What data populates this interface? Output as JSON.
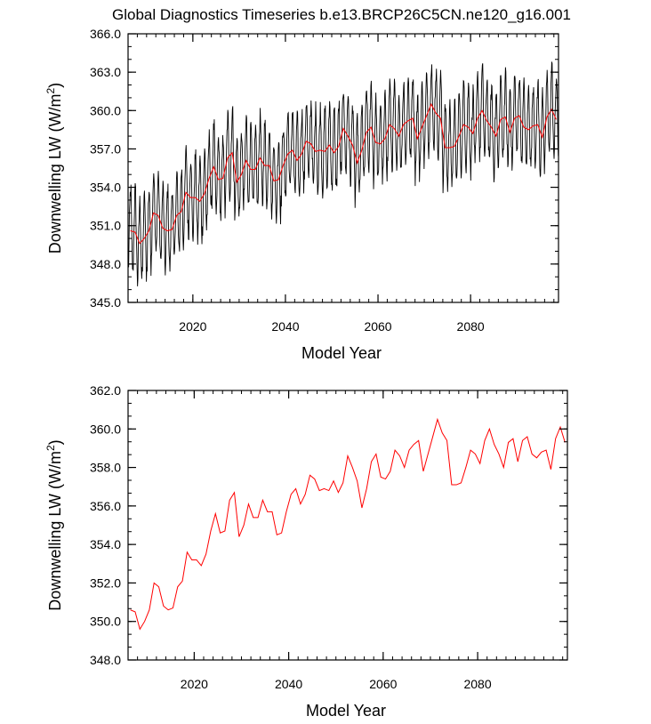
{
  "chart_data": {
    "title": "Global Diagnostics Timeseries b.e13.BRCP26C5CN.ne120_g16.001",
    "panels": [
      {
        "type": "line",
        "xlabel": "Model Year",
        "ylabel_main": "Downwelling LW (W/m",
        "ylabel_sup": "2",
        "ylabel_end": ")",
        "xlim": [
          2006,
          2099
        ],
        "ylim": [
          345,
          366
        ],
        "xticks": [
          2020,
          2040,
          2060,
          2080
        ],
        "xtick_labels": [
          "2020",
          "2040",
          "2060",
          "2080"
        ],
        "yticks": [
          345,
          348,
          351,
          354,
          357,
          360,
          363,
          366
        ],
        "ytick_labels": [
          "345.0",
          "348.0",
          "351.0",
          "354.0",
          "357.0",
          "360.0",
          "363.0",
          "366.0"
        ],
        "series": [
          {
            "name": "monthly",
            "color": "#000000",
            "kind": "monthly"
          },
          {
            "name": "annual",
            "color": "#ff0000",
            "kind": "annual"
          }
        ]
      },
      {
        "type": "line",
        "xlabel": "Model Year",
        "ylabel_main": "Downwelling LW (W/m",
        "ylabel_sup": "2",
        "ylabel_end": ")",
        "xlim": [
          2006,
          2099
        ],
        "ylim": [
          348,
          362
        ],
        "xticks": [
          2020,
          2040,
          2060,
          2080
        ],
        "xtick_labels": [
          "2020",
          "2040",
          "2060",
          "2080"
        ],
        "yticks": [
          348,
          350,
          352,
          354,
          356,
          358,
          360,
          362
        ],
        "ytick_labels": [
          "348.0",
          "350.0",
          "352.0",
          "354.0",
          "356.0",
          "358.0",
          "360.0",
          "362.0"
        ],
        "series": [
          {
            "name": "annual",
            "color": "#ff0000",
            "kind": "annual"
          }
        ]
      }
    ],
    "annual": {
      "x": [
        2006.5,
        2007.5,
        2008.5,
        2009.5,
        2010.5,
        2011.5,
        2012.5,
        2013.5,
        2014.5,
        2015.5,
        2016.5,
        2017.5,
        2018.5,
        2019.5,
        2020.5,
        2021.5,
        2022.5,
        2023.5,
        2024.5,
        2025.5,
        2026.5,
        2027.5,
        2028.5,
        2029.5,
        2030.5,
        2031.5,
        2032.5,
        2033.5,
        2034.5,
        2035.5,
        2036.5,
        2037.5,
        2038.5,
        2039.5,
        2040.5,
        2041.5,
        2042.5,
        2043.5,
        2044.5,
        2045.5,
        2046.5,
        2047.5,
        2048.5,
        2049.5,
        2050.5,
        2051.5,
        2052.5,
        2053.5,
        2054.5,
        2055.5,
        2056.5,
        2057.5,
        2058.5,
        2059.5,
        2060.5,
        2061.5,
        2062.5,
        2063.5,
        2064.5,
        2065.5,
        2066.5,
        2067.5,
        2068.5,
        2069.5,
        2070.5,
        2071.5,
        2072.5,
        2073.5,
        2074.5,
        2075.5,
        2076.5,
        2077.5,
        2078.5,
        2079.5,
        2080.5,
        2081.5,
        2082.5,
        2083.5,
        2084.5,
        2085.5,
        2086.5,
        2087.5,
        2088.5,
        2089.5,
        2090.5,
        2091.5,
        2092.5,
        2093.5,
        2094.5,
        2095.5,
        2096.5,
        2097.5,
        2098.5
      ],
      "values": [
        350.6,
        350.5,
        349.6,
        350.0,
        350.6,
        352.0,
        351.8,
        350.8,
        350.6,
        350.7,
        351.8,
        352.1,
        353.6,
        353.2,
        353.2,
        352.9,
        353.5,
        354.7,
        355.6,
        354.6,
        354.7,
        356.3,
        356.7,
        354.4,
        355.0,
        356.1,
        355.4,
        355.4,
        356.3,
        355.7,
        355.7,
        354.5,
        354.6,
        355.7,
        356.6,
        356.9,
        356.1,
        356.6,
        357.6,
        357.4,
        356.8,
        356.9,
        356.8,
        357.3,
        356.7,
        357.2,
        358.6,
        358.0,
        357.3,
        355.9,
        356.9,
        358.3,
        358.7,
        357.5,
        357.4,
        357.8,
        358.9,
        358.6,
        358.0,
        358.9,
        359.2,
        359.4,
        357.8,
        358.7,
        359.6,
        360.5,
        359.8,
        359.4,
        357.1,
        357.1,
        357.2,
        358.0,
        358.9,
        358.7,
        358.2,
        359.4,
        360.0,
        359.2,
        358.7,
        358.0,
        359.3,
        359.5,
        358.3,
        359.4,
        359.6,
        358.7,
        358.5,
        358.8,
        358.9,
        357.9,
        359.5,
        360.1,
        359.3
      ]
    }
  }
}
